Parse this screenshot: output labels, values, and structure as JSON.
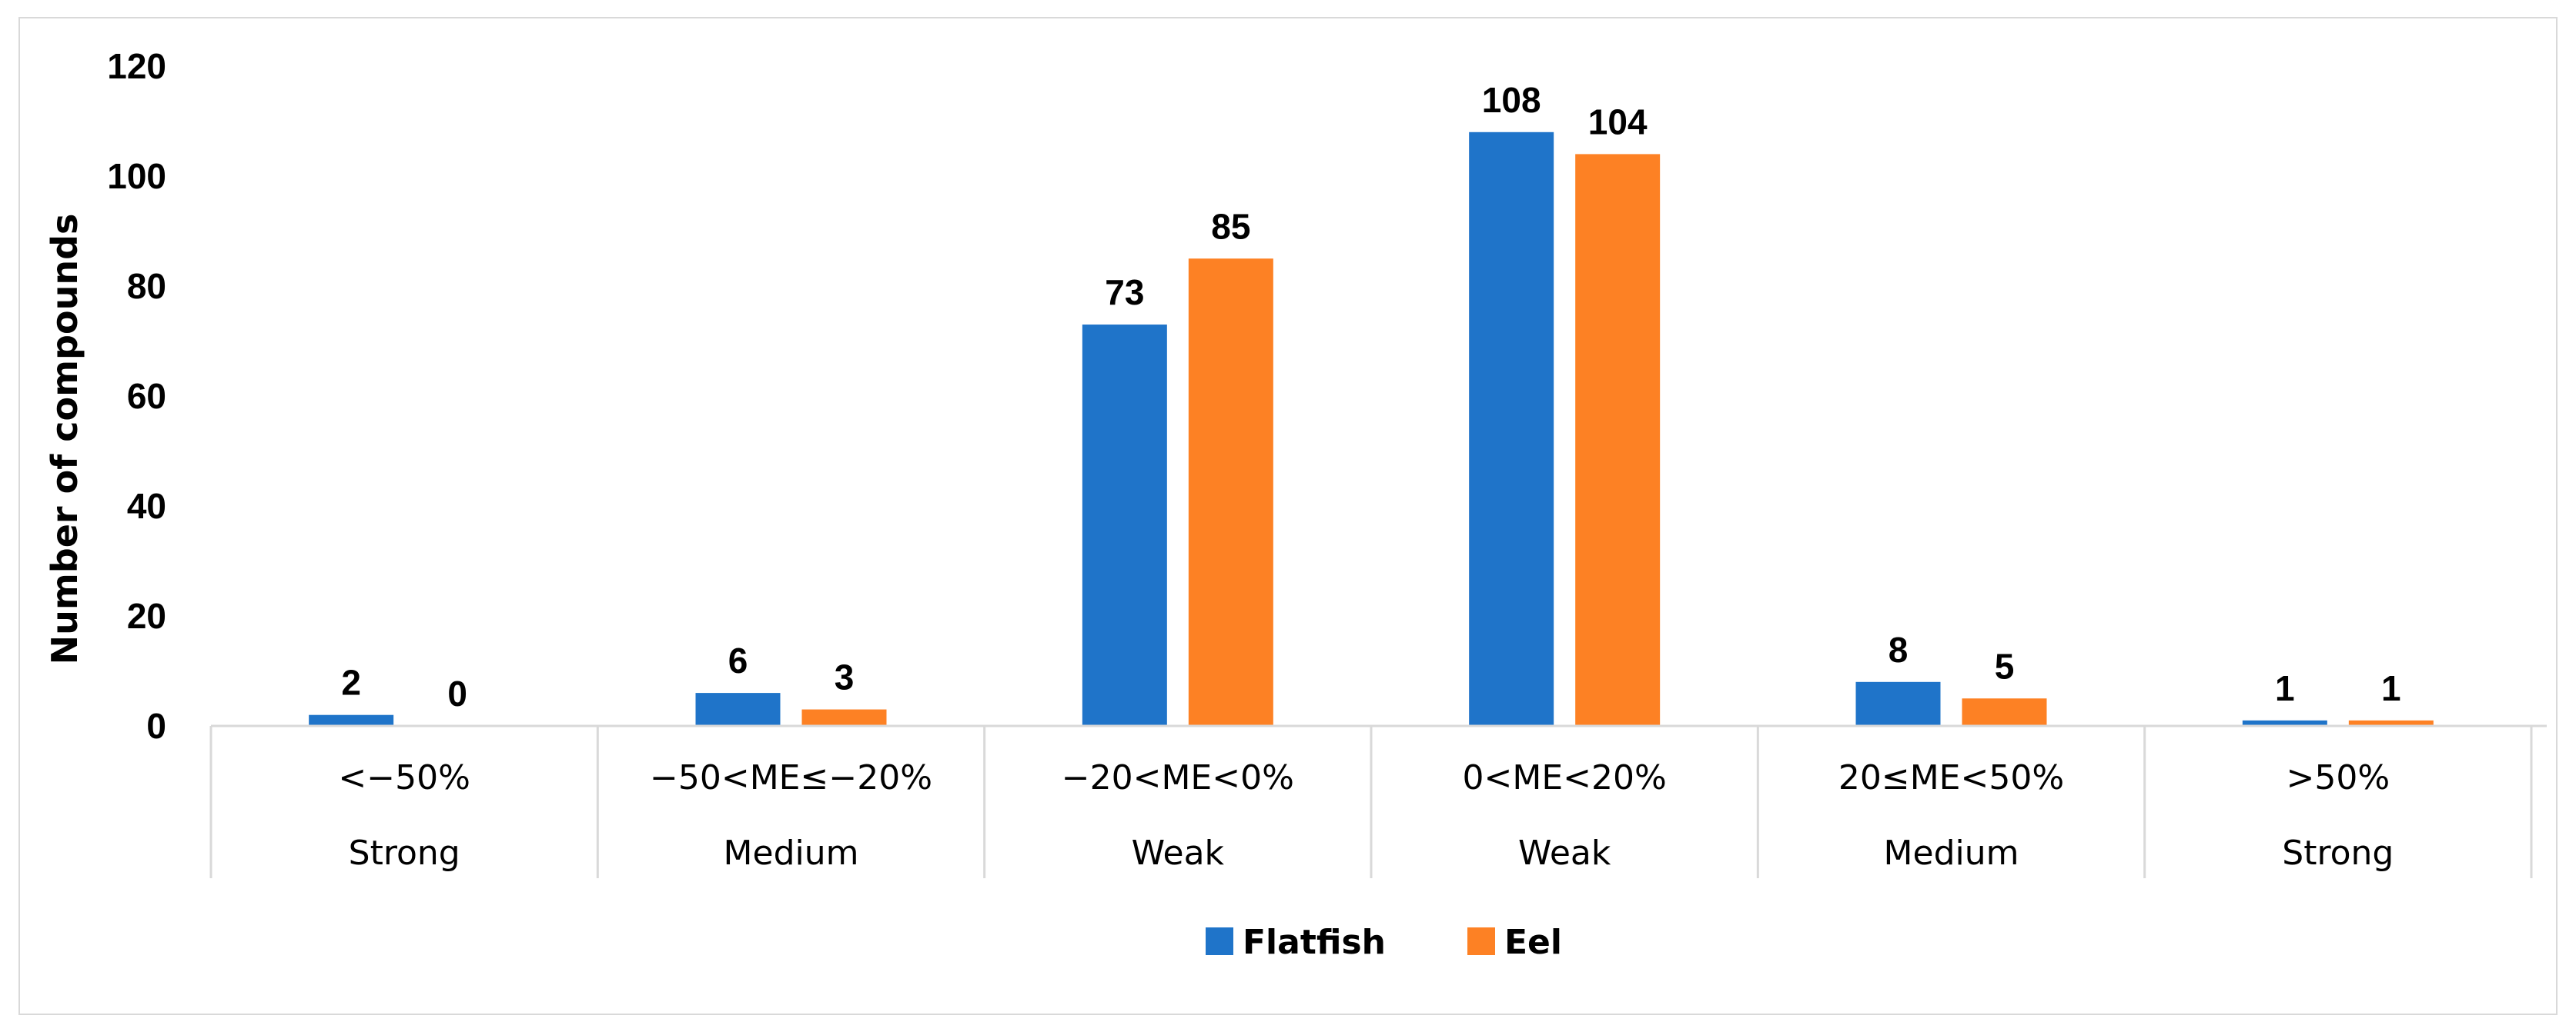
{
  "chart_data": {
    "type": "bar",
    "title": "",
    "xlabel": "",
    "ylabel": "Number of compounds",
    "ylim": [
      0,
      120
    ],
    "yticks": [
      0,
      20,
      40,
      60,
      80,
      100,
      120
    ],
    "grid": false,
    "legend_position": "bottom",
    "categories": [
      "<−50%",
      "−50<ME≤−20%",
      "−20<ME<0%",
      "0<ME<20%",
      "20≤ME<50%",
      ">50%"
    ],
    "category_groups": [
      "Strong",
      "Medium",
      "Weak",
      "Weak",
      "Medium",
      "Strong"
    ],
    "series": [
      {
        "name": "Flatfish",
        "color": "#1f74c9",
        "values": [
          2,
          6,
          73,
          108,
          8,
          1
        ]
      },
      {
        "name": "Eel",
        "color": "#fd8124",
        "values": [
          0,
          3,
          85,
          104,
          5,
          1
        ]
      }
    ]
  }
}
